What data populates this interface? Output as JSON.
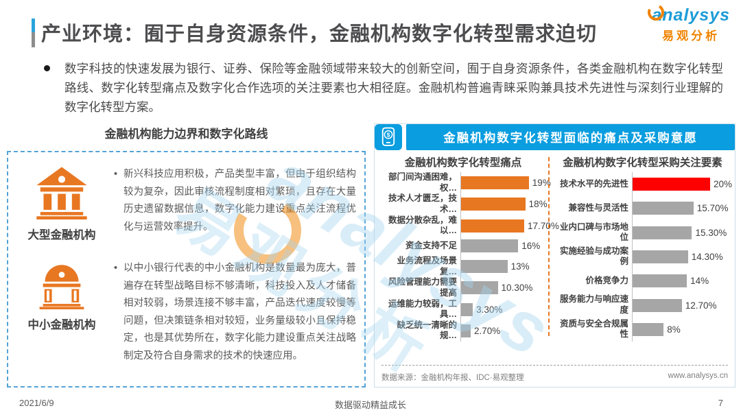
{
  "page": {
    "title": "产业环境：囿于自身资源条件，金融机构数字化转型需求迫切",
    "logo": {
      "brand": "analysys",
      "sub_brand": "易观分析"
    },
    "intro": "数字科技的快速发展为银行、证券、保险等金融领域带来较大的创新空间，囿于自身资源条件，各类金融机构在数字化转型路线、数字化转型痛点及数字化合作选项的关注要素也大相径庭。金融机构普遍青睐采购兼具技术先进性与深刻行业理解的数字化转型方案。",
    "footer": {
      "date": "2021/6/9",
      "slogan": "数据驱动精益成长",
      "page_number": "7"
    }
  },
  "left_panel": {
    "heading": "金融机构能力边界和数字化路线",
    "items": [
      {
        "icon": "large-bank-icon",
        "label": "大型金融机构",
        "text": "新兴科技应用积极，产品类型丰富，但由于组织结构较为复杂，因此审核流程制度相对繁琐，且存在大量历史遗留数据信息，数字化能力建设重点关注流程优化与运营效率提升。"
      },
      {
        "icon": "small-bank-icon",
        "label": "中小金融机构",
        "text": "以中小银行代表的中小金融机构是数量最为庞大，普遍存在转型战略目标不够清晰，科技投入及人才储备相对较弱，场景连接不够丰富，产品迭代速度较慢等问题，但决策链条相对较短，业务量级较小且保持稳定，也是其优势所在，数字化能力建设重点关注战略制定及符合自身需求的技术的快速应用。"
      }
    ]
  },
  "right_panel": {
    "header": "金融机构数字化转型面临的痛点及采购意愿",
    "header_icon": "mobile-finance-icon",
    "source": "数据来源：金融机构年报、IDC·易观整理",
    "website": "www.analysys.cn"
  },
  "colors": {
    "accent_blue": "#0A9DDF",
    "bar_orange": "#E87722",
    "bar_gray": "#A6A6A6",
    "bar_red": "#FE0000"
  },
  "chart_data": [
    {
      "type": "bar",
      "orientation": "horizontal",
      "title": "金融机构数字化转型痛点",
      "categories": [
        "部门间沟通困难，权…",
        "技术人才匮乏，技术…",
        "数据分散杂乱，难以…",
        "资金支持不足",
        "业务流程及场景复…",
        "风险管理能力需要提高",
        "运维能力较弱，工具…",
        "缺乏统一清晰的规…"
      ],
      "values": [
        19,
        18,
        17.7,
        16,
        13,
        10.3,
        3.3,
        2.7
      ],
      "labels": [
        "19%",
        "18%",
        "17.70%",
        "16%",
        "13%",
        "10.30%",
        "3.30%",
        "2.70%"
      ],
      "colors": [
        "#E87722",
        "#E87722",
        "#E87722",
        "#A6A6A6",
        "#A6A6A6",
        "#A6A6A6",
        "#A6A6A6",
        "#A6A6A6"
      ],
      "xlim": [
        0,
        20
      ],
      "grid": false,
      "legend": false
    },
    {
      "type": "bar",
      "orientation": "horizontal",
      "title": "金融机构数字化转型采购关注要素",
      "categories": [
        "技术水平的先进性",
        "兼容性与灵活性",
        "业内口碑与市场地位",
        "实施经验与成功案例",
        "价格竞争力",
        "服务能力与响应速度",
        "资质与安全合规属性"
      ],
      "values": [
        20,
        15.7,
        15.3,
        14.3,
        14,
        12.7,
        8
      ],
      "labels": [
        "20%",
        "15.70%",
        "15.30%",
        "14.30%",
        "14%",
        "12.70%",
        "8%"
      ],
      "colors": [
        "#FE0000",
        "#A6A6A6",
        "#A6A6A6",
        "#A6A6A6",
        "#A6A6A6",
        "#A6A6A6",
        "#A6A6A6"
      ],
      "xlim": [
        0,
        20
      ],
      "grid": false,
      "legend": false
    }
  ],
  "watermark": {
    "brand": "analysys",
    "sub_brand": "易观分析"
  }
}
